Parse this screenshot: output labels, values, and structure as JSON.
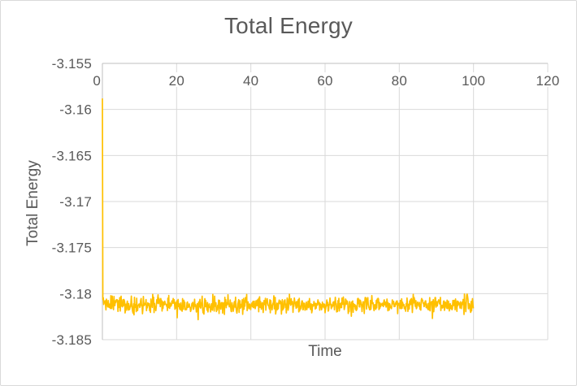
{
  "chart_data": {
    "type": "line",
    "title": "Total Energy",
    "xlabel": "Time",
    "ylabel": "Total Energy",
    "xlim": [
      0,
      120
    ],
    "ylim": [
      -3.185,
      -3.155
    ],
    "grid": true,
    "legend": "none",
    "x_ticks": {
      "values": [
        0,
        20,
        40,
        60,
        80,
        100,
        120
      ],
      "labels": [
        "0",
        "20",
        "40",
        "60",
        "80",
        "100",
        "120"
      ]
    },
    "y_ticks": {
      "values": [
        -3.155,
        -3.16,
        -3.165,
        -3.17,
        -3.175,
        -3.18,
        -3.185
      ],
      "labels": [
        "-3.155",
        "-3.16",
        "-3.165",
        "-3.17",
        "-3.175",
        "-3.18",
        "-3.185"
      ]
    },
    "series": [
      {
        "name": "Total Energy",
        "color": "#FFC000",
        "stroke_width": 1.7,
        "x_start": 0,
        "x_end": 100,
        "x_step": 0.12,
        "first_value": -3.1588,
        "baseline_mean": -3.1812,
        "noise_amplitude": 0.0013,
        "spike_extra": 0.0012,
        "spike_probability": 0.06,
        "seed": 20177,
        "shape_note": "Single sharp vertical spike at t=0 starting near -3.159, dropping immediately to a flat noisy band around -3.181 (roughly -3.1795 to -3.1835) that persists until t=100; no data from t=100 to t=120."
      }
    ],
    "styles": {
      "grid_color": "#D9D9D9",
      "axis_color": "#BFBFBF",
      "text_color": "#595959",
      "background": "#FFFFFF",
      "border_color": "#D9D9D9"
    }
  }
}
